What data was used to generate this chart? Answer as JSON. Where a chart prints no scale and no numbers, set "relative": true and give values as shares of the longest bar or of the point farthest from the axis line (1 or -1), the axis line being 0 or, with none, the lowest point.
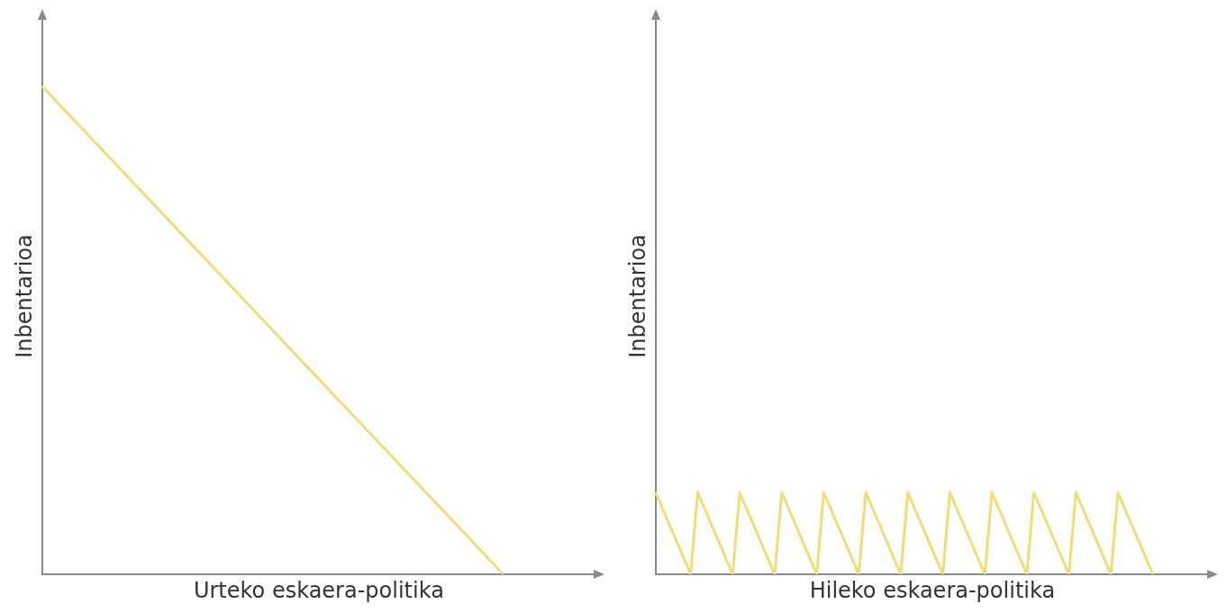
{
  "chart_data": [
    {
      "type": "line",
      "xlabel": "Urteko eskaera-politika",
      "ylabel": "Inbentarioa",
      "relative": true,
      "grid": false,
      "legend": false,
      "marker": "none",
      "line_style": "solid",
      "categories": [
        null,
        null,
        null,
        null,
        null,
        null,
        null
      ],
      "series": [
        {
          "color": "#f0dc78",
          "values": [
            1,
            0.8,
            0.6,
            0.4,
            0.2,
            0,
            null
          ]
        }
      ]
    },
    {
      "type": "line",
      "xlabel": "Hileko eskaera-politika",
      "ylabel": "Inbentarioa",
      "relative": true,
      "grid": false,
      "legend": false,
      "marker": "none",
      "line_style": "solid",
      "categories": [
        null,
        null,
        null,
        null,
        null,
        null,
        null,
        null,
        null,
        null,
        null,
        null,
        null,
        null,
        null,
        null,
        null,
        null,
        null,
        null,
        null,
        null,
        null,
        null,
        null,
        null,
        null,
        null,
        null,
        null,
        null,
        null,
        null,
        null,
        null,
        null,
        null,
        null,
        null,
        null,
        null,
        null,
        null,
        null,
        null,
        null,
        null,
        null,
        null,
        null,
        null,
        null,
        null,
        null,
        null,
        null,
        null,
        null,
        null,
        null,
        null,
        null,
        null,
        null,
        null,
        null,
        null,
        null,
        null,
        null,
        null,
        null,
        null,
        null,
        null,
        null,
        null,
        null,
        null,
        null
      ],
      "series": [
        {
          "color": "#f0dc78",
          "values": [
            1,
            0.8,
            0.6,
            0.4,
            0.2,
            0,
            1,
            0.8,
            0.6,
            0.4,
            0.2,
            0,
            1,
            0.8,
            0.6,
            0.4,
            0.2,
            0,
            1,
            0.8,
            0.6,
            0.4,
            0.2,
            0,
            1,
            0.8,
            0.6,
            0.4,
            0.2,
            0,
            1,
            0.8,
            0.6,
            0.4,
            0.2,
            0,
            1,
            0.8,
            0.6,
            0.4,
            0.2,
            0,
            1,
            0.8,
            0.6,
            0.4,
            0.2,
            0,
            1,
            0.8,
            0.6,
            0.4,
            0.2,
            0,
            1,
            0.8,
            0.6,
            0.4,
            0.2,
            0,
            1,
            0.8,
            0.6,
            0.4,
            0.2,
            0,
            1,
            0.8,
            0.6,
            0.4,
            0.2,
            0,
            null,
            null,
            null,
            null,
            null,
            null,
            null,
            null
          ]
        }
      ]
    }
  ]
}
